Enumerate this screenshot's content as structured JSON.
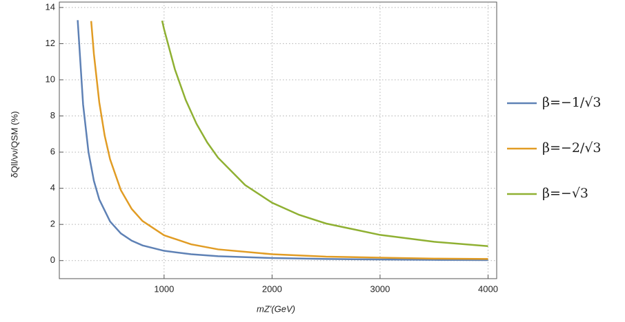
{
  "chart_data": {
    "type": "line",
    "xlabel": "mZ'(GeV)",
    "ylabel": "δQll/νν/QSM (%)",
    "xlim": [
      30,
      4080
    ],
    "ylim": [
      -1,
      14.3
    ],
    "xticks": [
      1000,
      2000,
      3000,
      4000
    ],
    "yticks": [
      0,
      2,
      4,
      6,
      8,
      10,
      12,
      14
    ],
    "grid": true,
    "legend": "right",
    "series": [
      {
        "name": "β=−1/√3",
        "color": "#5e81b5",
        "x": [
          200,
          250,
          300,
          350,
          400,
          500,
          600,
          700,
          800,
          1000,
          1250,
          1500,
          2000,
          2500,
          3000,
          3500,
          4000
        ],
        "values": [
          13.3,
          8.64,
          6.0,
          4.41,
          3.38,
          2.16,
          1.5,
          1.1,
          0.84,
          0.54,
          0.35,
          0.24,
          0.14,
          0.09,
          0.06,
          0.04,
          0.03
        ]
      },
      {
        "name": "β=−2/√3",
        "color": "#e19c24",
        "x": [
          325,
          350,
          400,
          450,
          500,
          600,
          700,
          800,
          1000,
          1250,
          1500,
          2000,
          2500,
          3000,
          3500,
          4000
        ],
        "values": [
          13.25,
          11.43,
          8.75,
          6.91,
          5.6,
          3.89,
          2.86,
          2.19,
          1.4,
          0.9,
          0.62,
          0.35,
          0.22,
          0.16,
          0.11,
          0.09
        ]
      },
      {
        "name": "β=−√3",
        "color": "#8fb032",
        "x": [
          982,
          1000,
          1100,
          1200,
          1300,
          1400,
          1500,
          1750,
          2000,
          2250,
          2500,
          3000,
          3500,
          4000
        ],
        "values": [
          13.27,
          12.8,
          10.58,
          8.89,
          7.57,
          6.53,
          5.69,
          4.18,
          3.2,
          2.53,
          2.05,
          1.42,
          1.04,
          0.8
        ]
      }
    ]
  }
}
